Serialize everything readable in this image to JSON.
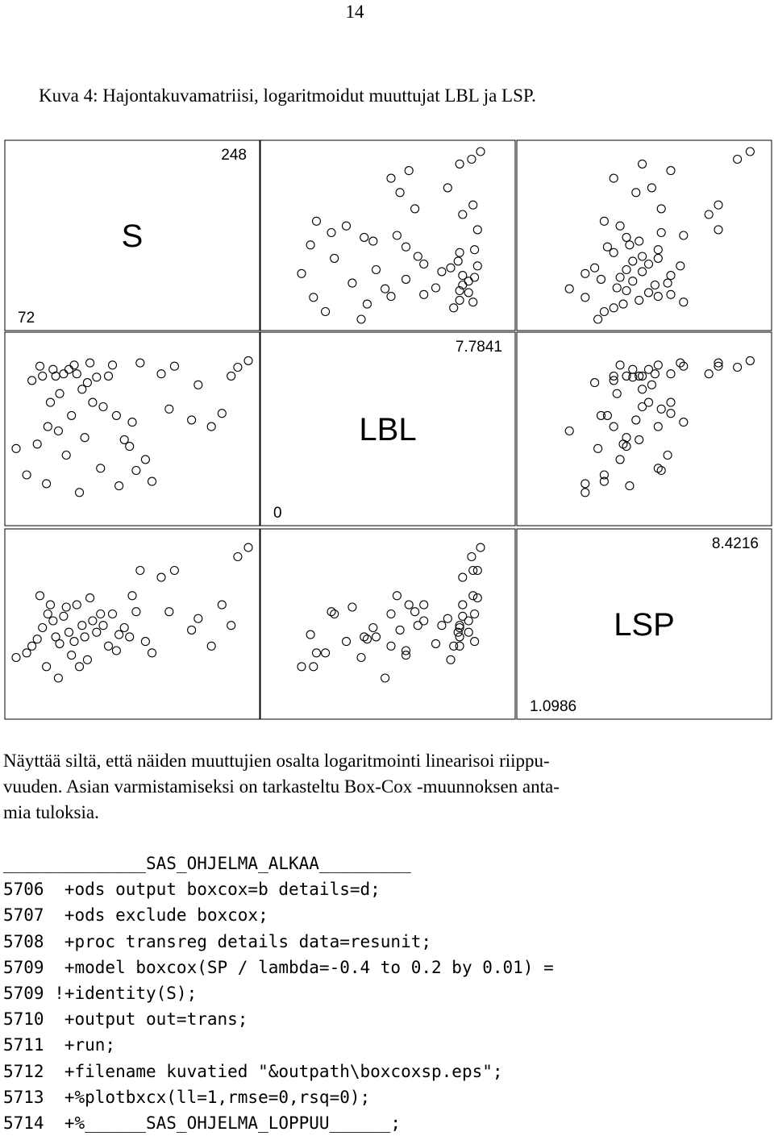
{
  "page_number": "14",
  "caption": "Kuva 4: Hajontakuvamatriisi, logaritmoidut muuttujat LBL ja LSP.",
  "paragraph": [
    "Näyttää siltä, että näiden muuttujien osalta logaritmointi linearisoi riippu-",
    "vuuden. Asian varmistamiseksi on tarkasteltu Box-Cox -muunnoksen anta-",
    "mia tuloksia."
  ],
  "code_lines": [
    "______________SAS_OHJELMA_ALKAA_________",
    "5706  +ods output boxcox=b details=d;",
    "5707  +ods exclude boxcox;",
    "5708  +proc transreg details data=resunit;",
    "5709  +model boxcox(SP / lambda=-0.4 to 0.2 by 0.01) =",
    "5709 !+identity(S);",
    "5710  +output out=trans;",
    "5711  +run;",
    "5712  +filename kuvatied \"&outpath\\boxcoxsp.eps\";",
    "5713  +%plotbxcx(ll=1,rmse=0,rsq=0);",
    "5714  +%______SAS_OHJELMA_LOPPUU______;"
  ],
  "chart_data": {
    "type": "scatter",
    "subtype": "scatterplot-matrix",
    "variables": [
      {
        "name": "S",
        "max_label": "248",
        "min_label": "72",
        "range": [
          72,
          248
        ]
      },
      {
        "name": "LBL",
        "max_label": "7.7841",
        "min_label": "0",
        "range": [
          0,
          7.7841
        ]
      },
      {
        "name": "LSP",
        "max_label": "8.4216",
        "min_label": "1.0986",
        "range": [
          1.0986,
          8.4216
        ]
      }
    ],
    "observations": [
      {
        "S": 72,
        "LBL": 3.0,
        "LSP": 3.3
      },
      {
        "S": 80,
        "LBL": 1.8,
        "LSP": 3.5
      },
      {
        "S": 84,
        "LBL": 6.1,
        "LSP": 3.8
      },
      {
        "S": 88,
        "LBL": 3.2,
        "LSP": 4.1
      },
      {
        "S": 90,
        "LBL": 6.75,
        "LSP": 6.0
      },
      {
        "S": 92,
        "LBL": 6.3,
        "LSP": 4.6
      },
      {
        "S": 95,
        "LBL": 1.4,
        "LSP": 2.9
      },
      {
        "S": 96,
        "LBL": 4.0,
        "LSP": 5.2
      },
      {
        "S": 98,
        "LBL": 5.1,
        "LSP": 5.6
      },
      {
        "S": 100,
        "LBL": 6.6,
        "LSP": 4.9
      },
      {
        "S": 102,
        "LBL": 6.3,
        "LSP": 4.2
      },
      {
        "S": 104,
        "LBL": 3.8,
        "LSP": 2.4
      },
      {
        "S": 105,
        "LBL": 5.5,
        "LSP": 3.9
      },
      {
        "S": 108,
        "LBL": 6.4,
        "LSP": 5.1
      },
      {
        "S": 110,
        "LBL": 2.7,
        "LSP": 5.5
      },
      {
        "S": 112,
        "LBL": 6.6,
        "LSP": 4.4
      },
      {
        "S": 114,
        "LBL": 4.5,
        "LSP": 3.4
      },
      {
        "S": 116,
        "LBL": 6.8,
        "LSP": 4.0
      },
      {
        "S": 118,
        "LBL": 6.4,
        "LSP": 5.6
      },
      {
        "S": 120,
        "LBL": 1.0,
        "LSP": 2.9
      },
      {
        "S": 122,
        "LBL": 5.7,
        "LSP": 4.7
      },
      {
        "S": 124,
        "LBL": 3.5,
        "LSP": 4.2
      },
      {
        "S": 126,
        "LBL": 6.0,
        "LSP": 3.2
      },
      {
        "S": 128,
        "LBL": 6.9,
        "LSP": 5.9
      },
      {
        "S": 130,
        "LBL": 5.1,
        "LSP": 4.9
      },
      {
        "S": 133,
        "LBL": 6.25,
        "LSP": 4.4
      },
      {
        "S": 136,
        "LBL": 2.1,
        "LSP": 5.2
      },
      {
        "S": 138,
        "LBL": 4.9,
        "LSP": 4.7
      },
      {
        "S": 142,
        "LBL": 6.3,
        "LSP": 3.8
      },
      {
        "S": 145,
        "LBL": 6.8,
        "LSP": 5.2
      },
      {
        "S": 148,
        "LBL": 4.5,
        "LSP": 3.6
      },
      {
        "S": 150,
        "LBL": 1.3,
        "LSP": 4.3
      },
      {
        "S": 154,
        "LBL": 3.4,
        "LSP": 4.6
      },
      {
        "S": 158,
        "LBL": 3.1,
        "LSP": 4.2
      },
      {
        "S": 160,
        "LBL": 4.2,
        "LSP": 6.0
      },
      {
        "S": 163,
        "LBL": 2.0,
        "LSP": 5.3
      },
      {
        "S": 166,
        "LBL": 6.9,
        "LSP": 7.1
      },
      {
        "S": 170,
        "LBL": 2.5,
        "LSP": 4.0
      },
      {
        "S": 175,
        "LBL": 1.5,
        "LSP": 3.5
      },
      {
        "S": 182,
        "LBL": 6.4,
        "LSP": 6.8
      },
      {
        "S": 188,
        "LBL": 4.8,
        "LSP": 5.3
      },
      {
        "S": 192,
        "LBL": 6.75,
        "LSP": 7.1
      },
      {
        "S": 205,
        "LBL": 4.3,
        "LSP": 4.5
      },
      {
        "S": 210,
        "LBL": 5.9,
        "LSP": 5.0
      },
      {
        "S": 220,
        "LBL": 4.0,
        "LSP": 3.8
      },
      {
        "S": 228,
        "LBL": 4.6,
        "LSP": 5.6
      },
      {
        "S": 235,
        "LBL": 6.3,
        "LSP": 4.7
      },
      {
        "S": 240,
        "LBL": 6.7,
        "LSP": 7.7
      },
      {
        "S": 248,
        "LBL": 7.0,
        "LSP": 8.1
      }
    ]
  }
}
